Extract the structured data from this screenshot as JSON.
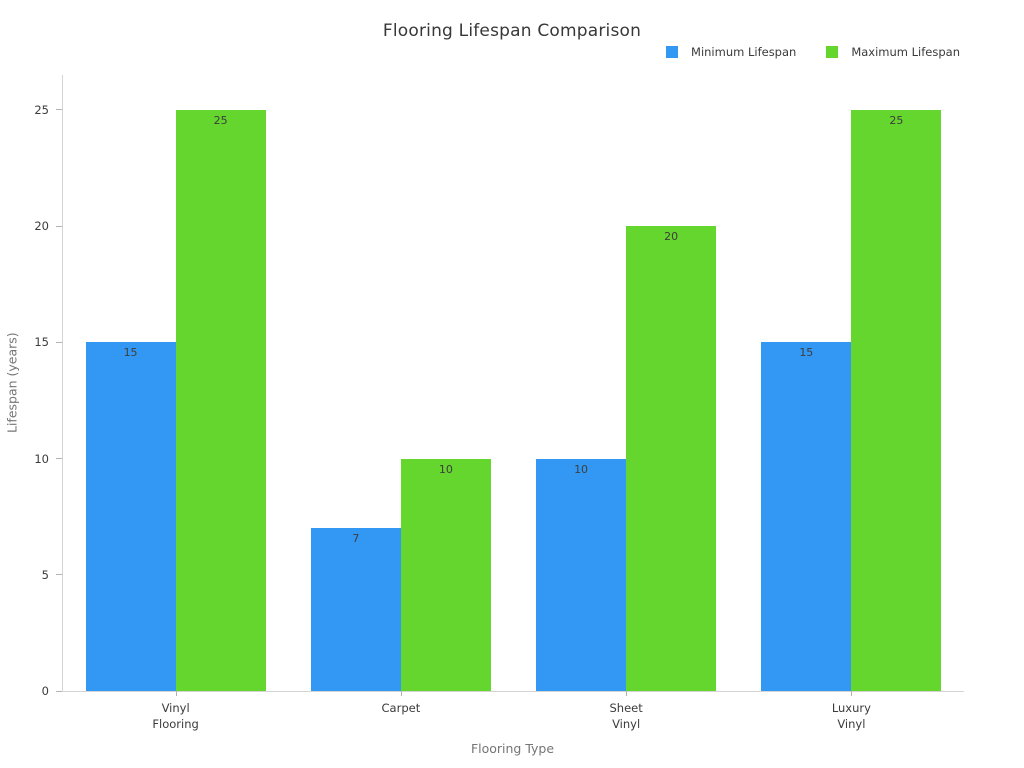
{
  "chart_data": {
    "type": "bar",
    "title": "Flooring Lifespan Comparison",
    "xlabel": "Flooring Type",
    "ylabel": "Lifespan (years)",
    "categories": [
      "Vinyl\nFlooring",
      "Carpet",
      "Sheet\nVinyl",
      "Luxury\nVinyl"
    ],
    "series": [
      {
        "name": "Minimum Lifespan",
        "color": "#3398f3",
        "values": [
          15,
          7,
          10,
          15
        ]
      },
      {
        "name": "Maximum Lifespan",
        "color": "#64d62d",
        "values": [
          25,
          10,
          20,
          25
        ]
      }
    ],
    "yticks": [
      0,
      5,
      10,
      15,
      20,
      25
    ],
    "ylim": [
      0,
      26.5
    ],
    "grid": false,
    "legend_position": "top-right",
    "bar_value_labels": true,
    "colors": {
      "axis_line": "#d4d4d4",
      "tick_mark": "#b3b3b3",
      "tick_label": "#3b3b3b",
      "axis_title": "#757575",
      "title": "#383838",
      "background": "#ffffff"
    }
  }
}
